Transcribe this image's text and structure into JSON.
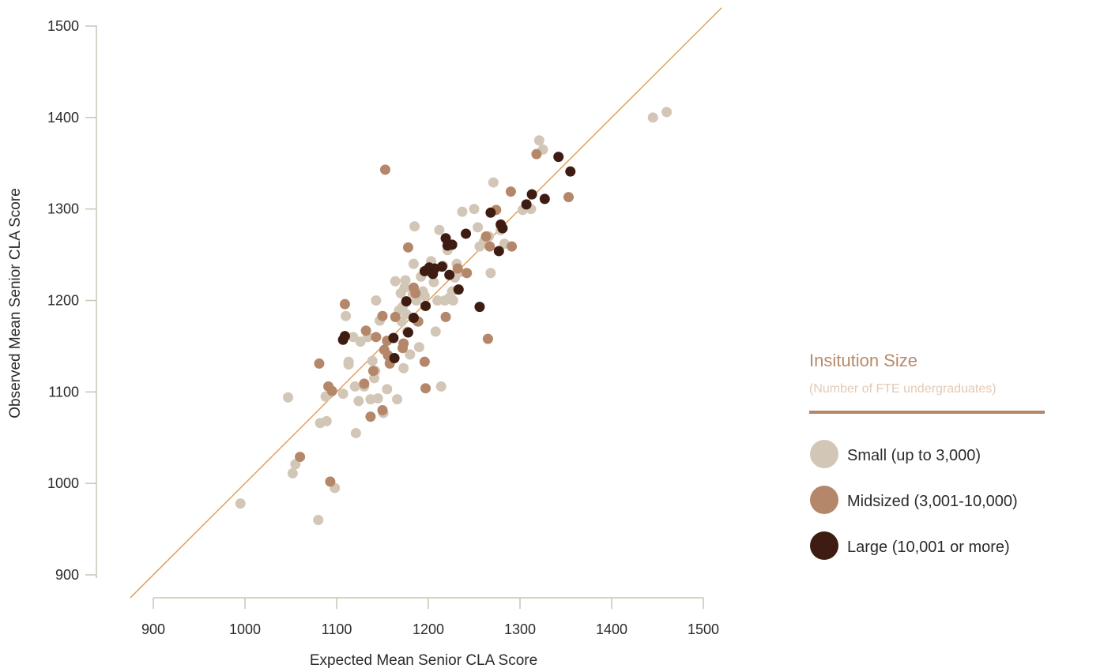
{
  "chart_data": {
    "type": "scatter",
    "xlabel": "Expected Mean Senior CLA Score",
    "ylabel": "Observed Mean Senior CLA Score",
    "xlim": [
      900,
      1500
    ],
    "ylim": [
      900,
      1500
    ],
    "x_ticks": [
      "900",
      "1000",
      "1100",
      "1200",
      "1300",
      "1400",
      "1500"
    ],
    "y_ticks": [
      "900",
      "1000",
      "1100",
      "1200",
      "1300",
      "1400",
      "1500"
    ],
    "reference_line": {
      "from": [
        875,
        875
      ],
      "to": [
        1520,
        1520
      ],
      "color": "#e0a060"
    },
    "legend": {
      "title": "Insitution Size",
      "subtitle": "(Number of FTE undergraduates)",
      "placement": "right"
    },
    "series": [
      {
        "name": "Small (up to 3,000)",
        "color": "#d2c6b6",
        "points": [
          [
            995,
            978
          ],
          [
            1047,
            1094
          ],
          [
            1052,
            1011
          ],
          [
            1055,
            1021
          ],
          [
            1080,
            960
          ],
          [
            1082,
            1066
          ],
          [
            1088,
            1095
          ],
          [
            1089,
            1068
          ],
          [
            1098,
            995
          ],
          [
            1107,
            1098
          ],
          [
            1110,
            1183
          ],
          [
            1113,
            1130
          ],
          [
            1113,
            1133
          ],
          [
            1118,
            1160
          ],
          [
            1120,
            1106
          ],
          [
            1121,
            1055
          ],
          [
            1124,
            1090
          ],
          [
            1126,
            1155
          ],
          [
            1130,
            1106
          ],
          [
            1134,
            1160
          ],
          [
            1137,
            1092
          ],
          [
            1139,
            1134
          ],
          [
            1141,
            1115
          ],
          [
            1142,
            1123
          ],
          [
            1143,
            1200
          ],
          [
            1145,
            1093
          ],
          [
            1147,
            1178
          ],
          [
            1150,
            1183
          ],
          [
            1151,
            1077
          ],
          [
            1155,
            1103
          ],
          [
            1158,
            1132
          ],
          [
            1164,
            1221
          ],
          [
            1166,
            1092
          ],
          [
            1168,
            1189
          ],
          [
            1170,
            1208
          ],
          [
            1171,
            1177
          ],
          [
            1172,
            1193
          ],
          [
            1173,
            1126
          ],
          [
            1174,
            1214
          ],
          [
            1175,
            1222
          ],
          [
            1176,
            1185
          ],
          [
            1177,
            1166
          ],
          [
            1180,
            1141
          ],
          [
            1183,
            1207
          ],
          [
            1184,
            1240
          ],
          [
            1185,
            1281
          ],
          [
            1187,
            1200
          ],
          [
            1188,
            1177
          ],
          [
            1190,
            1149
          ],
          [
            1192,
            1226
          ],
          [
            1194,
            1210
          ],
          [
            1196,
            1205
          ],
          [
            1200,
            1232
          ],
          [
            1203,
            1243
          ],
          [
            1206,
            1220
          ],
          [
            1208,
            1166
          ],
          [
            1210,
            1200
          ],
          [
            1212,
            1277
          ],
          [
            1214,
            1106
          ],
          [
            1216,
            1238
          ],
          [
            1218,
            1200
          ],
          [
            1221,
            1255
          ],
          [
            1223,
            1203
          ],
          [
            1226,
            1210
          ],
          [
            1227,
            1200
          ],
          [
            1229,
            1225
          ],
          [
            1231,
            1240
          ],
          [
            1234,
            1231
          ],
          [
            1237,
            1297
          ],
          [
            1250,
            1300
          ],
          [
            1254,
            1280
          ],
          [
            1256,
            1259
          ],
          [
            1261,
            1265
          ],
          [
            1266,
            1270
          ],
          [
            1268,
            1230
          ],
          [
            1271,
            1329
          ],
          [
            1279,
            1277
          ],
          [
            1283,
            1262
          ],
          [
            1303,
            1299
          ],
          [
            1312,
            1300
          ],
          [
            1321,
            1375
          ],
          [
            1325,
            1365
          ],
          [
            1445,
            1400
          ],
          [
            1460,
            1406
          ]
        ]
      },
      {
        "name": "Midsized (3,001-10,000)",
        "color": "#b5876a",
        "points": [
          [
            1060,
            1029
          ],
          [
            1081,
            1131
          ],
          [
            1091,
            1106
          ],
          [
            1093,
            1002
          ],
          [
            1095,
            1101
          ],
          [
            1109,
            1196
          ],
          [
            1130,
            1109
          ],
          [
            1132,
            1167
          ],
          [
            1137,
            1073
          ],
          [
            1140,
            1123
          ],
          [
            1143,
            1160
          ],
          [
            1150,
            1183
          ],
          [
            1150,
            1080
          ],
          [
            1152,
            1146
          ],
          [
            1153,
            1343
          ],
          [
            1155,
            1156
          ],
          [
            1156,
            1140
          ],
          [
            1158,
            1131
          ],
          [
            1164,
            1182
          ],
          [
            1172,
            1148
          ],
          [
            1173,
            1153
          ],
          [
            1178,
            1258
          ],
          [
            1184,
            1214
          ],
          [
            1186,
            1208
          ],
          [
            1189,
            1177
          ],
          [
            1196,
            1133
          ],
          [
            1197,
            1104
          ],
          [
            1219,
            1182
          ],
          [
            1232,
            1235
          ],
          [
            1242,
            1230
          ],
          [
            1263,
            1270
          ],
          [
            1265,
            1158
          ],
          [
            1267,
            1259
          ],
          [
            1274,
            1299
          ],
          [
            1290,
            1319
          ],
          [
            1291,
            1259
          ],
          [
            1318,
            1360
          ],
          [
            1353,
            1313
          ]
        ]
      },
      {
        "name": "Large (10,001 or more)",
        "color": "#3e1c12",
        "points": [
          [
            1107,
            1157
          ],
          [
            1109,
            1161
          ],
          [
            1162,
            1159
          ],
          [
            1163,
            1137
          ],
          [
            1176,
            1199
          ],
          [
            1178,
            1165
          ],
          [
            1184,
            1181
          ],
          [
            1196,
            1232
          ],
          [
            1197,
            1194
          ],
          [
            1201,
            1236
          ],
          [
            1205,
            1229
          ],
          [
            1207,
            1235
          ],
          [
            1215,
            1237
          ],
          [
            1219,
            1268
          ],
          [
            1221,
            1260
          ],
          [
            1223,
            1228
          ],
          [
            1226,
            1261
          ],
          [
            1233,
            1212
          ],
          [
            1241,
            1273
          ],
          [
            1256,
            1193
          ],
          [
            1268,
            1296
          ],
          [
            1277,
            1254
          ],
          [
            1279,
            1283
          ],
          [
            1281,
            1279
          ],
          [
            1307,
            1305
          ],
          [
            1313,
            1316
          ],
          [
            1327,
            1311
          ],
          [
            1342,
            1357
          ],
          [
            1355,
            1341
          ]
        ]
      }
    ]
  }
}
